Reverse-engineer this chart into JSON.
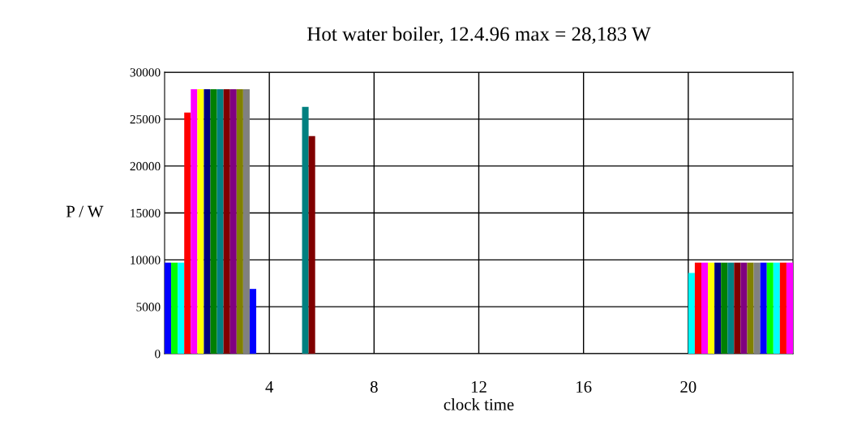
{
  "chart_data": {
    "type": "bar",
    "title": "Hot water boiler, 12.4.96 max = 28,183 W",
    "xlabel": "clock time",
    "ylabel": "P / W",
    "x": [
      0,
      0.25,
      0.5,
      0.75,
      1,
      1.25,
      1.5,
      1.75,
      2,
      2.25,
      2.5,
      2.75,
      3,
      3.25,
      3.5,
      3.75,
      4,
      4.25,
      4.5,
      4.75,
      5,
      5.25,
      5.5,
      5.75,
      6,
      6.25,
      6.5,
      6.75,
      7,
      7.25,
      7.5,
      7.75,
      8,
      8.25,
      8.5,
      8.75,
      9,
      9.25,
      9.5,
      9.75,
      10,
      10.25,
      10.5,
      10.75,
      11,
      11.25,
      11.5,
      11.75,
      12,
      12.25,
      12.5,
      12.75,
      13,
      13.25,
      13.5,
      13.75,
      14,
      14.25,
      14.5,
      14.75,
      15,
      15.25,
      15.5,
      15.75,
      16,
      16.25,
      16.5,
      16.75,
      17,
      17.25,
      17.5,
      17.75,
      18,
      18.25,
      18.5,
      18.75,
      19,
      19.25,
      19.5,
      19.75,
      20,
      20.25,
      20.5,
      20.75,
      21,
      21.25,
      21.5,
      21.75,
      22,
      22.25,
      22.5,
      22.75,
      23,
      23.25,
      23.5,
      23.75
    ],
    "values": [
      9700,
      9700,
      9700,
      25700,
      28183,
      28183,
      28183,
      28183,
      28183,
      28183,
      28183,
      28183,
      28183,
      6900,
      0,
      0,
      0,
      0,
      0,
      0,
      0,
      26300,
      23200,
      0,
      0,
      0,
      0,
      0,
      0,
      0,
      0,
      0,
      0,
      0,
      0,
      0,
      0,
      0,
      0,
      0,
      0,
      0,
      0,
      0,
      0,
      0,
      0,
      0,
      0,
      0,
      0,
      0,
      0,
      0,
      0,
      0,
      0,
      0,
      0,
      0,
      0,
      0,
      0,
      0,
      0,
      0,
      0,
      0,
      0,
      0,
      0,
      0,
      0,
      0,
      0,
      0,
      0,
      0,
      0,
      0,
      8600,
      9700,
      9700,
      9700,
      9700,
      9700,
      9700,
      9700,
      9700,
      9700,
      9700,
      9700,
      9700,
      9700,
      9700,
      9700
    ],
    "colors": [
      "#0000ff",
      "#00ff00",
      "#00ffff",
      "#ff0000",
      "#ff00ff",
      "#ffff00",
      "#000080",
      "#008000",
      "#008080",
      "#800000",
      "#800080",
      "#808000",
      "#808080",
      "#0000ff",
      "#00ff00",
      "#00ffff",
      "#ff0000",
      "#ff00ff",
      "#ffff00",
      "#000080",
      "#008000",
      "#008080",
      "#800000",
      "#800080",
      "#808000",
      "#808080",
      "#0000ff",
      "#00ff00",
      "#00ffff",
      "#ff0000",
      "#ff00ff",
      "#ffff00",
      "#000080",
      "#008000",
      "#008080",
      "#800000",
      "#800080",
      "#808000",
      "#808080",
      "#0000ff",
      "#00ff00",
      "#00ffff",
      "#ff0000",
      "#ff00ff",
      "#ffff00",
      "#000080",
      "#008000",
      "#008080",
      "#800000",
      "#800080",
      "#808000",
      "#808080",
      "#0000ff",
      "#00ff00",
      "#00ffff",
      "#ff0000",
      "#ff00ff",
      "#ffff00",
      "#000080",
      "#008000",
      "#008080",
      "#800000",
      "#800080",
      "#808000",
      "#808080",
      "#0000ff",
      "#00ff00",
      "#00ffff",
      "#ff0000",
      "#ff00ff",
      "#ffff00",
      "#000080",
      "#008000",
      "#008080",
      "#800000",
      "#800080",
      "#808000",
      "#808080",
      "#0000ff",
      "#00ff00",
      "#00ffff",
      "#ff0000",
      "#ff00ff",
      "#ffff00",
      "#000080",
      "#008000",
      "#008080",
      "#800000",
      "#800080",
      "#808000",
      "#808080",
      "#0000ff",
      "#00ff00",
      "#00ffff",
      "#ff0000",
      "#ff00ff"
    ],
    "xlim": [
      0,
      24
    ],
    "xticks": [
      4,
      8,
      12,
      16,
      20
    ],
    "ylim": [
      0,
      30000
    ],
    "yticks": [
      0,
      5000,
      10000,
      15000,
      20000,
      25000,
      30000
    ],
    "grid": true
  }
}
